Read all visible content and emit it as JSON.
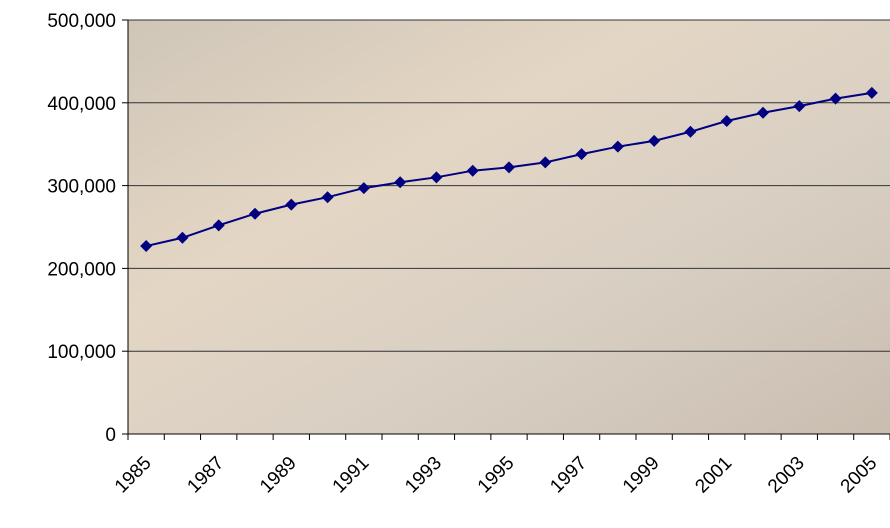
{
  "chart_data": {
    "type": "line",
    "categories": [
      "1985",
      null,
      "1987",
      null,
      "1989",
      null,
      "1991",
      null,
      "1993",
      null,
      "1995",
      null,
      "1997",
      null,
      "1999",
      null,
      "2001",
      null,
      "2003",
      null,
      "2005"
    ],
    "series": [
      {
        "color": "#000080",
        "values": [
          227000,
          237000,
          252000,
          266000,
          277000,
          286000,
          297000,
          304000,
          310000,
          318000,
          322000,
          328000,
          338000,
          347000,
          354000,
          365000,
          378000,
          388000,
          396000,
          405000,
          412000
        ]
      }
    ],
    "ylim": [
      0,
      500000
    ],
    "yticks": [
      0,
      {
        "value": 100000,
        "label": "100,000"
      },
      {
        "value": 200000,
        "label": "200,000"
      },
      {
        "value": 300000,
        "label": "300,000"
      },
      {
        "value": 400000,
        "label": "400,000"
      },
      {
        "value": 500000,
        "label": "500,000"
      }
    ],
    "grid": true
  }
}
